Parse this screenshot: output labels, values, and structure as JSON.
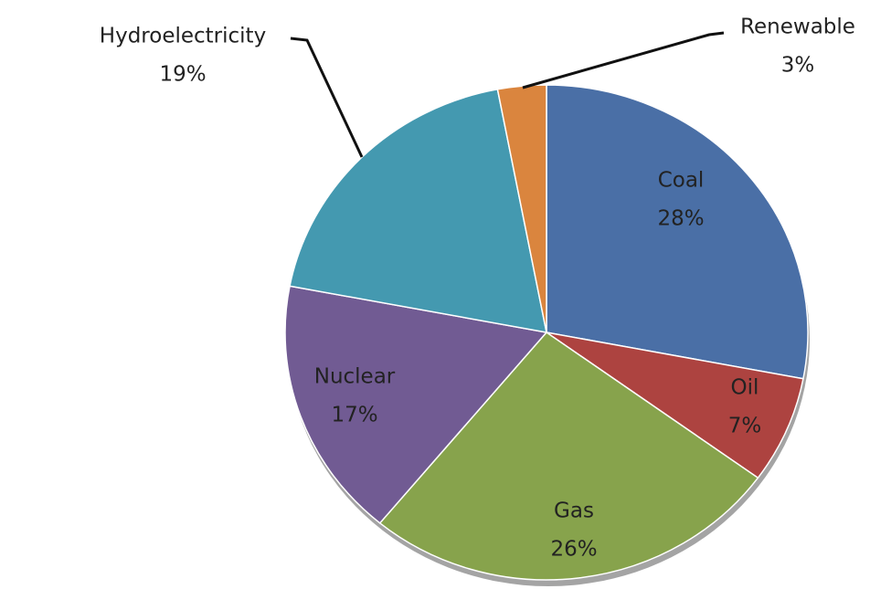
{
  "chart_data": {
    "type": "pie",
    "categories": [
      "Coal",
      "Oil",
      "Gas",
      "Nuclear",
      "Hydroelectricity",
      "Renewable"
    ],
    "values": [
      28,
      7,
      26,
      17,
      19,
      3
    ],
    "value_labels": [
      "28%",
      "7%",
      "26%",
      "17%",
      "19%",
      "3%"
    ],
    "colors": [
      "#4a6fa6",
      "#ad4340",
      "#87a34c",
      "#715b93",
      "#4499b0",
      "#da853e"
    ]
  }
}
